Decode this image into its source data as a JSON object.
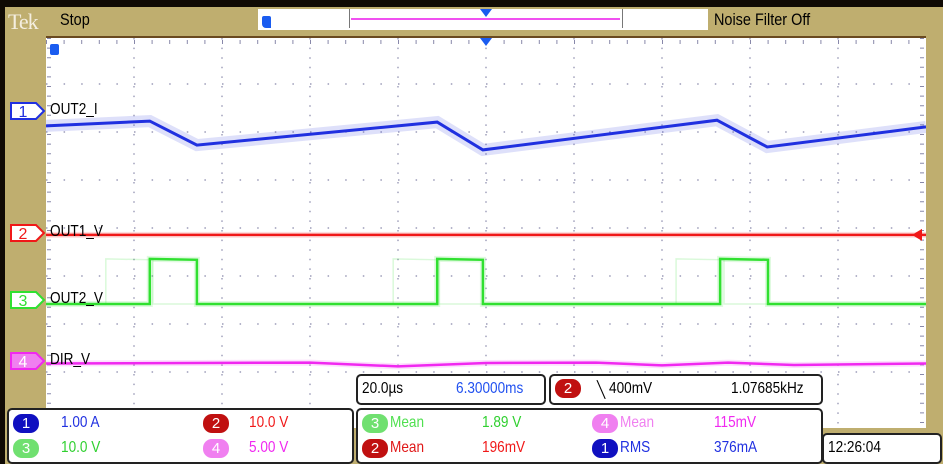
{
  "header": {
    "brand": "Tek",
    "status": "Stop",
    "noise_filter": "Noise Filter Off"
  },
  "colors": {
    "ch1": "#2030e0",
    "ch2": "#f01818",
    "ch3": "#30e030",
    "ch4": "#f028f0",
    "ch1_bg": "#1010c0",
    "ch2_bg": "#c01010",
    "ch3_bg": "#70e070",
    "ch4_bg": "#f080f0",
    "background": "#bfae6f"
  },
  "channels": [
    {
      "number": "1",
      "label": "OUT2_I",
      "scale": "1.00 A"
    },
    {
      "number": "2",
      "label": "OUT1_V",
      "scale": "10.0 V"
    },
    {
      "number": "3",
      "label": "OUT2_V",
      "scale": "10.0 V"
    },
    {
      "number": "4",
      "label": "DIR_V",
      "scale": "5.00 V"
    }
  ],
  "timebase": {
    "scale": "20.0µs",
    "position": "6.30000ms"
  },
  "trigger": {
    "source": "2",
    "slope": "╲",
    "level": "400mV",
    "frequency": "1.07685kHz"
  },
  "measurements": [
    {
      "source": "3",
      "type": "Mean",
      "value": "1.89 V"
    },
    {
      "source": "4",
      "type": "Mean",
      "value": "115mV"
    },
    {
      "source": "2",
      "type": "Mean",
      "value": "196mV"
    },
    {
      "source": "1",
      "type": "RMS",
      "value": "376mA"
    }
  ],
  "clock": "12:26:04",
  "chart_data": {
    "type": "line",
    "grid": true,
    "x_unit": "µs",
    "x_range": [
      0,
      200
    ],
    "y_unit": "div",
    "y_range": [
      -4,
      4
    ],
    "series": [
      {
        "name": "OUT2_I",
        "x": [
          0,
          23.6,
          34.3,
          88.9,
          99.3,
          152.5,
          163.9,
          200
        ],
        "y": [
          2.21,
          2.31,
          1.81,
          2.29,
          1.71,
          2.33,
          1.77,
          2.19
        ]
      },
      {
        "name": "OUT1_V",
        "x": [
          0,
          200
        ],
        "y": [
          -0.06,
          -0.06
        ]
      },
      {
        "name": "OUT2_V",
        "x": [
          0,
          23.6,
          23.6,
          34.3,
          34.3,
          88.9,
          88.9,
          99.3,
          99.3,
          153.2,
          153.2,
          164.1,
          164.1,
          200
        ],
        "y": [
          -1.5,
          -1.5,
          -0.56,
          -0.58,
          -1.5,
          -1.5,
          -0.56,
          -0.58,
          -1.5,
          -1.5,
          -0.56,
          -0.58,
          -1.5,
          -1.5
        ]
      },
      {
        "name": "DIR_V",
        "x": [
          0,
          60,
          80,
          100,
          125,
          140,
          155,
          170,
          200
        ],
        "y": [
          -2.74,
          -2.72,
          -2.8,
          -2.73,
          -2.72,
          -2.78,
          -2.72,
          -2.77,
          -2.74
        ]
      }
    ]
  }
}
